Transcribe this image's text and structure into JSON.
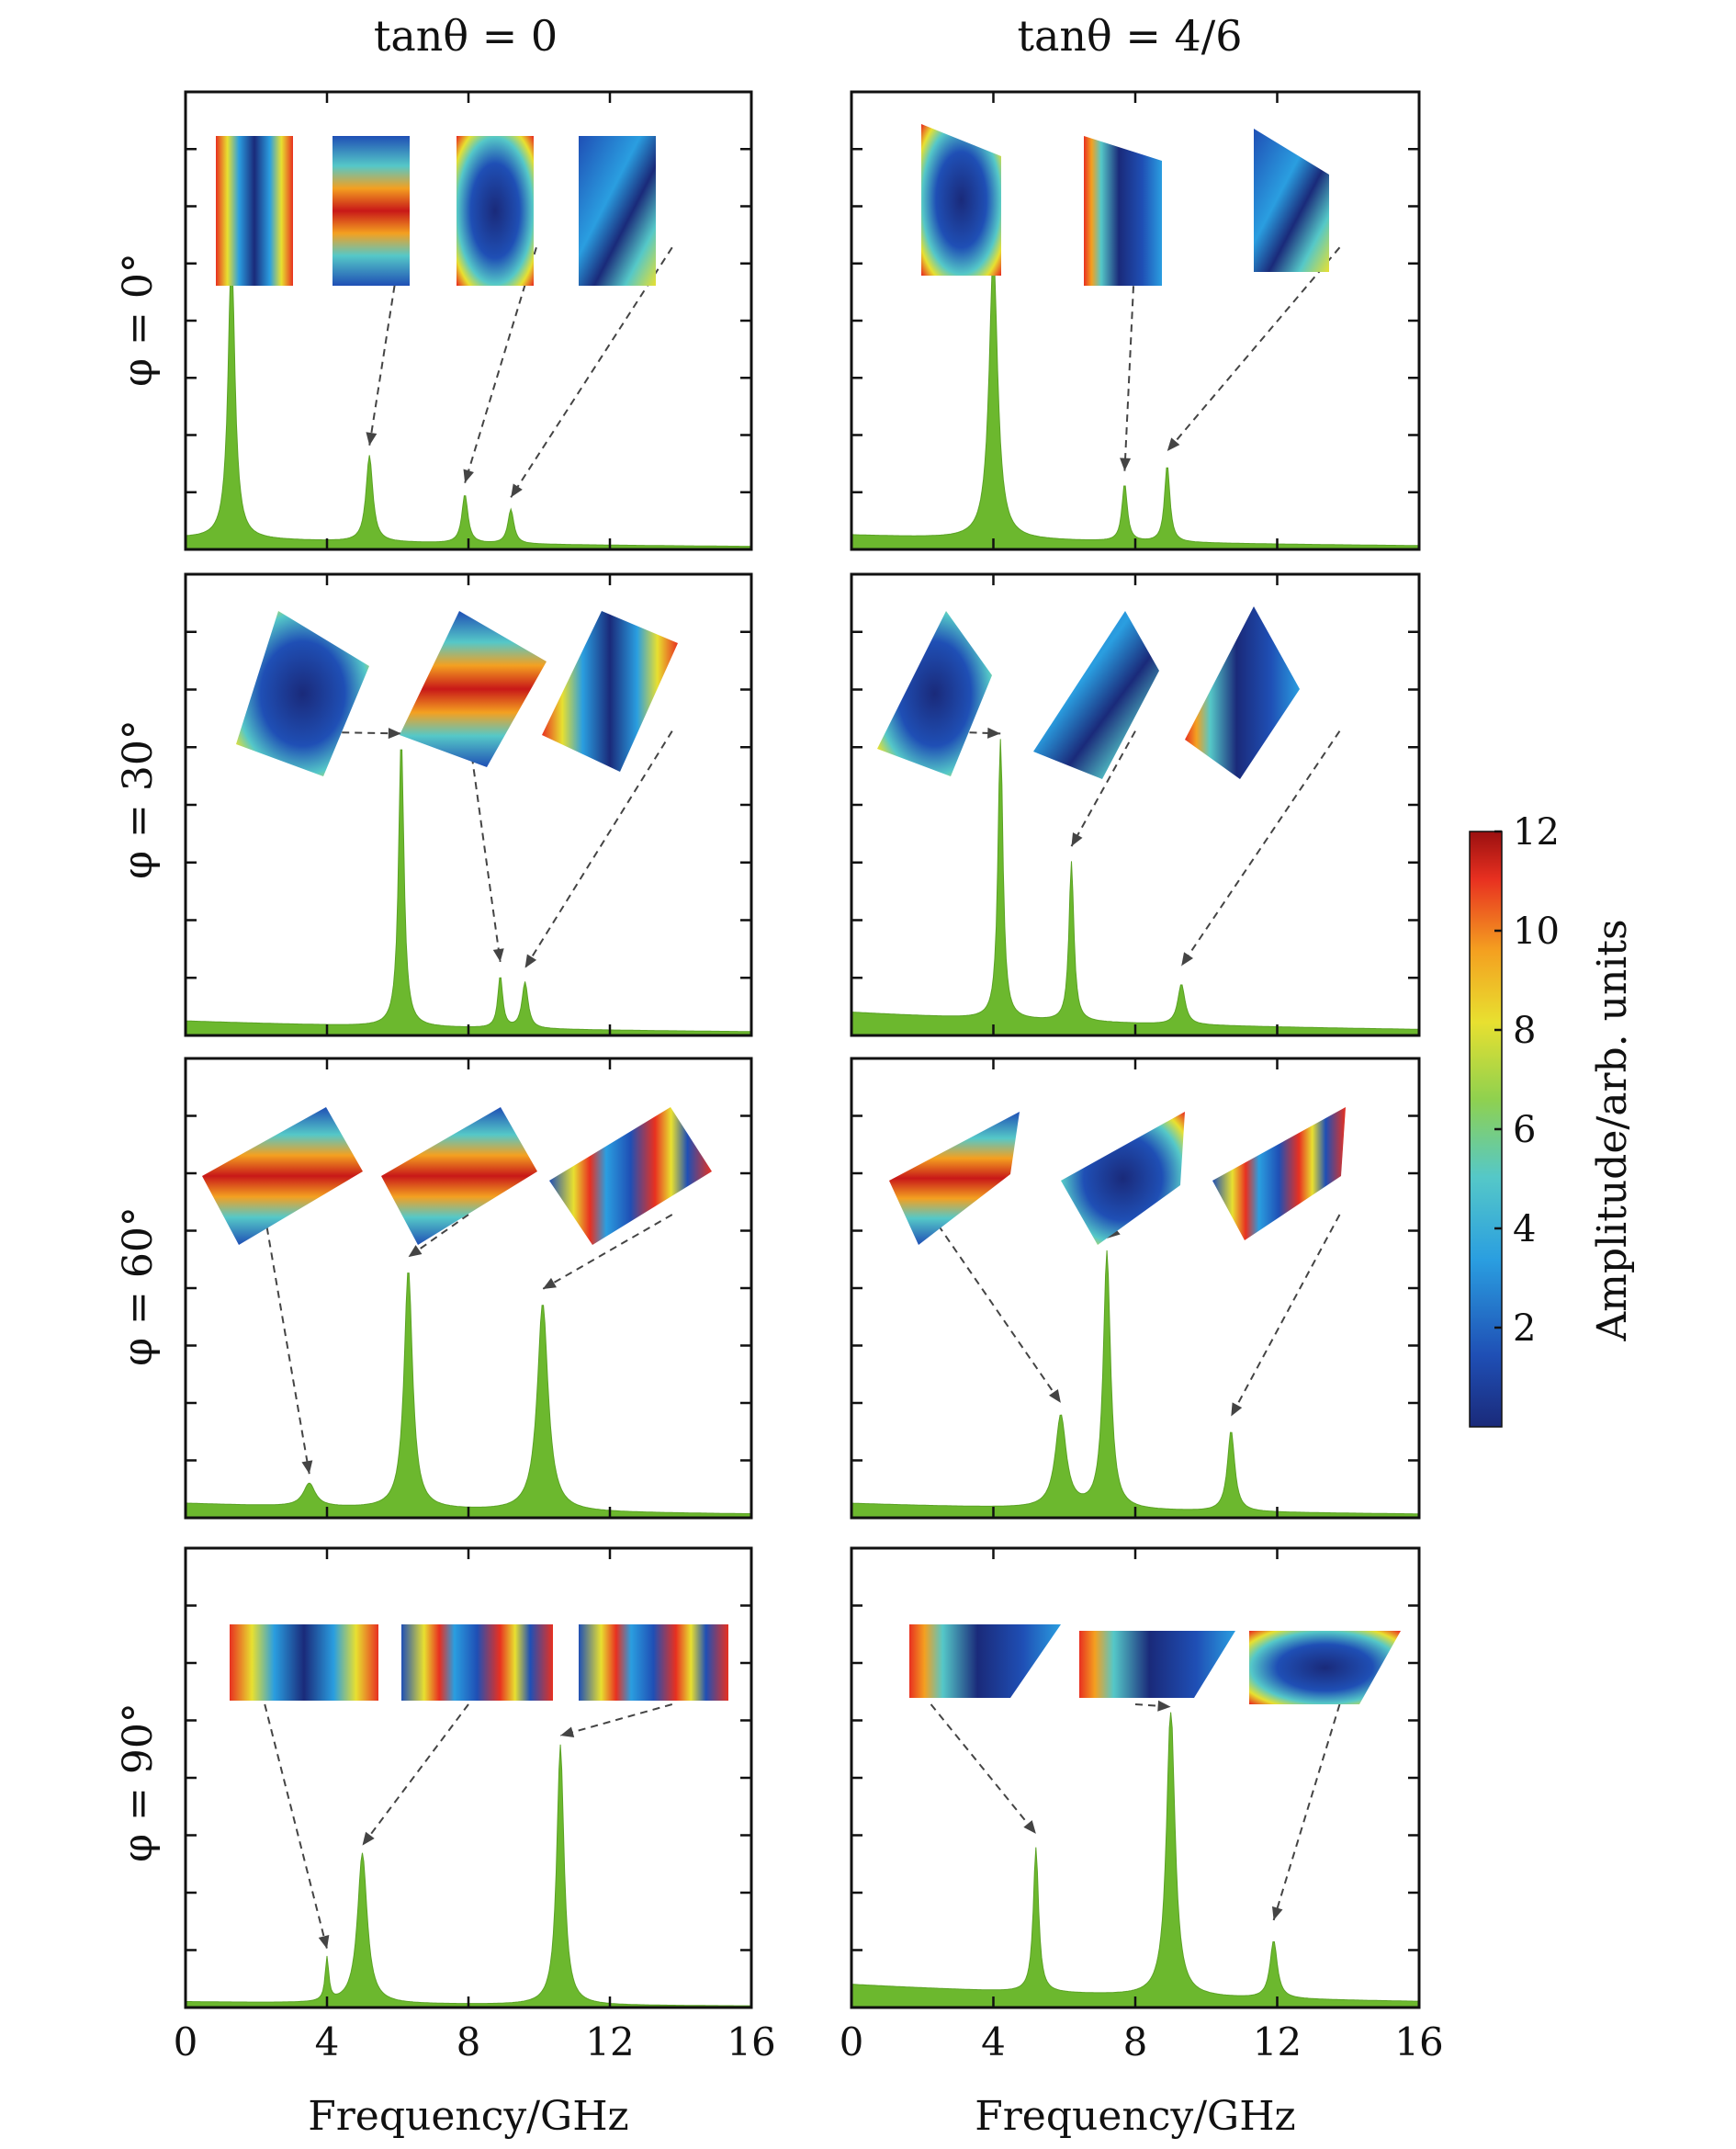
{
  "colors": {
    "spectrum_fill": "#6cb82e",
    "frame": "#111111",
    "arrow": "#444444",
    "colormap": [
      "#1a2a7a",
      "#1f4fb5",
      "#2a9ee0",
      "#55c8c8",
      "#8fd14f",
      "#e8e030",
      "#f4a020",
      "#e83020",
      "#9a1010"
    ]
  },
  "figure": {
    "column_titles": [
      "tanθ = 0",
      "tanθ = 4/6"
    ],
    "row_labels": [
      "φ = 0°",
      "φ = 30°",
      "φ = 60°",
      "φ = 90°"
    ],
    "xlabel": "Frequency/GHz",
    "colorbar": {
      "label": "Amplitude/arb. units",
      "ticks": [
        "2",
        "4",
        "6",
        "8",
        "10",
        "12"
      ],
      "range": [
        0,
        12
      ]
    }
  },
  "chart_data": {
    "type": "area",
    "xlim": [
      0,
      16
    ],
    "ylim": [
      0,
      1
    ],
    "x_ticks": [
      0,
      4,
      8,
      12,
      16
    ],
    "xlabel": "Frequency/GHz",
    "panels": [
      {
        "row": "φ = 0°",
        "col": "tanθ = 0",
        "baseline": 0.04,
        "peaks": [
          {
            "f": 1.3,
            "amp": 1.0,
            "w": 0.28
          },
          {
            "f": 5.2,
            "amp": 0.3,
            "w": 0.28
          },
          {
            "f": 7.9,
            "amp": 0.17,
            "w": 0.25
          },
          {
            "f": 9.2,
            "amp": 0.12,
            "w": 0.25
          }
        ],
        "mode_peaks": [
          1.3,
          5.2,
          7.9,
          9.2
        ]
      },
      {
        "row": "φ = 0°",
        "col": "tanθ = 4/6",
        "baseline": 0.05,
        "peaks": [
          {
            "f": 4.0,
            "amp": 1.0,
            "w": 0.35
          },
          {
            "f": 7.7,
            "amp": 0.2,
            "w": 0.22
          },
          {
            "f": 8.9,
            "amp": 0.27,
            "w": 0.22
          }
        ],
        "mode_peaks": [
          4.0,
          7.7,
          8.9
        ]
      },
      {
        "row": "φ = 30°",
        "col": "tanθ = 0",
        "baseline": 0.05,
        "peaks": [
          {
            "f": 6.1,
            "amp": 1.0,
            "w": 0.22
          },
          {
            "f": 8.9,
            "amp": 0.18,
            "w": 0.2
          },
          {
            "f": 9.6,
            "amp": 0.16,
            "w": 0.25
          }
        ],
        "mode_peaks": [
          6.1,
          8.9,
          9.6
        ]
      },
      {
        "row": "φ = 30°",
        "col": "tanθ = 4/6",
        "baseline": 0.08,
        "peaks": [
          {
            "f": 4.2,
            "amp": 1.0,
            "w": 0.2
          },
          {
            "f": 6.2,
            "amp": 0.55,
            "w": 0.2
          },
          {
            "f": 9.3,
            "amp": 0.14,
            "w": 0.3
          }
        ],
        "mode_peaks": [
          4.2,
          6.2,
          9.3
        ]
      },
      {
        "row": "φ = 60°",
        "col": "tanθ = 0",
        "baseline": 0.05,
        "peaks": [
          {
            "f": 3.5,
            "amp": 0.08,
            "w": 0.5
          },
          {
            "f": 6.3,
            "amp": 0.83,
            "w": 0.35
          },
          {
            "f": 10.1,
            "amp": 0.72,
            "w": 0.45
          }
        ],
        "mode_peaks": [
          3.5,
          6.3,
          10.1
        ]
      },
      {
        "row": "φ = 60°",
        "col": "tanθ = 4/6",
        "baseline": 0.05,
        "peaks": [
          {
            "f": 5.9,
            "amp": 0.32,
            "w": 0.45
          },
          {
            "f": 7.2,
            "amp": 0.89,
            "w": 0.3
          },
          {
            "f": 10.7,
            "amp": 0.28,
            "w": 0.3
          }
        ],
        "mode_peaks": [
          5.9,
          7.2,
          10.7
        ]
      },
      {
        "row": "φ = 90°",
        "col": "tanθ = 0",
        "baseline": 0.02,
        "peaks": [
          {
            "f": 4.0,
            "amp": 0.15,
            "w": 0.15
          },
          {
            "f": 5.0,
            "amp": 0.52,
            "w": 0.4
          },
          {
            "f": 10.6,
            "amp": 0.9,
            "w": 0.3
          }
        ],
        "mode_peaks": [
          4.0,
          5.0,
          10.6
        ]
      },
      {
        "row": "φ = 90°",
        "col": "tanθ = 4/6",
        "baseline": 0.08,
        "peaks": [
          {
            "f": 5.2,
            "amp": 0.5,
            "w": 0.22
          },
          {
            "f": 9.0,
            "amp": 1.0,
            "w": 0.35
          },
          {
            "f": 11.9,
            "amp": 0.2,
            "w": 0.3
          }
        ],
        "mode_peaks": [
          5.2,
          9.0,
          11.9
        ]
      }
    ]
  }
}
